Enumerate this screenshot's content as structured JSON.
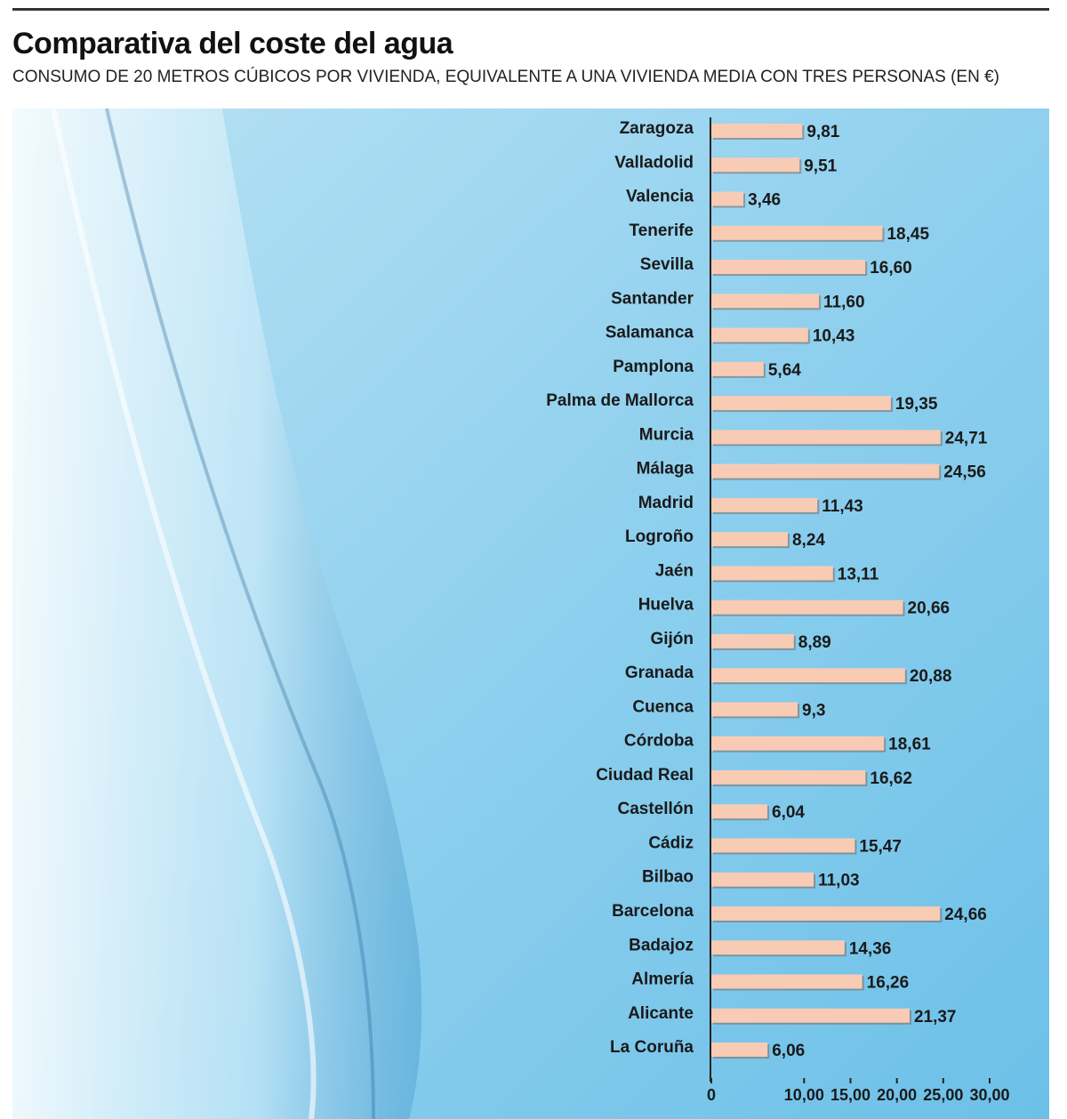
{
  "chart_data": {
    "type": "barh",
    "title": "Comparativa del coste del agua",
    "subtitle": "CONSUMO DE 20 METROS CÚBICOS POR VIVIENDA, EQUIVALENTE A UNA VIVIENDA MEDIA CON TRES PERSONAS (EN €)",
    "categories": [
      "Zaragoza",
      "Valladolid",
      "Valencia",
      "Tenerife",
      "Sevilla",
      "Santander",
      "Salamanca",
      "Pamplona",
      "Palma de Mallorca",
      "Murcia",
      "Málaga",
      "Madrid",
      "Logroño",
      "Jaén",
      "Huelva",
      "Gijón",
      "Granada",
      "Cuenca",
      "Córdoba",
      "Ciudad Real",
      "Castellón",
      "Cádiz",
      "Bilbao",
      "Barcelona",
      "Badajoz",
      "Almería",
      "Alicante",
      "La Coruña"
    ],
    "values": [
      9.81,
      9.51,
      3.46,
      18.45,
      16.6,
      11.6,
      10.43,
      5.64,
      19.35,
      24.71,
      24.56,
      11.43,
      8.24,
      13.11,
      20.66,
      8.89,
      20.88,
      9.3,
      18.61,
      16.62,
      6.04,
      15.47,
      11.03,
      24.66,
      14.36,
      16.26,
      21.37,
      6.06
    ],
    "value_labels": [
      "9,81",
      "9,51",
      "3,46",
      "18,45",
      "16,60",
      "11,60",
      "10,43",
      "5,64",
      "19,35",
      "24,71",
      "24,56",
      "11,43",
      "8,24",
      "13,11",
      "20,66",
      "8,89",
      "20,88",
      "9,3",
      "18,61",
      "16,62",
      "6,04",
      "15,47",
      "11,03",
      "24,66",
      "14,36",
      "16,26",
      "21,37",
      "6,06"
    ],
    "color": "#f8cbb5",
    "xlim": [
      0,
      30
    ],
    "xticks": [
      0,
      {
        "value": 10,
        "label": "10,00"
      },
      {
        "value": 15,
        "label": "15,00"
      },
      {
        "value": 20,
        "label": "20,00"
      },
      {
        "value": 25,
        "label": "25,00"
      },
      {
        "value": 30,
        "label": "30,00"
      }
    ]
  }
}
